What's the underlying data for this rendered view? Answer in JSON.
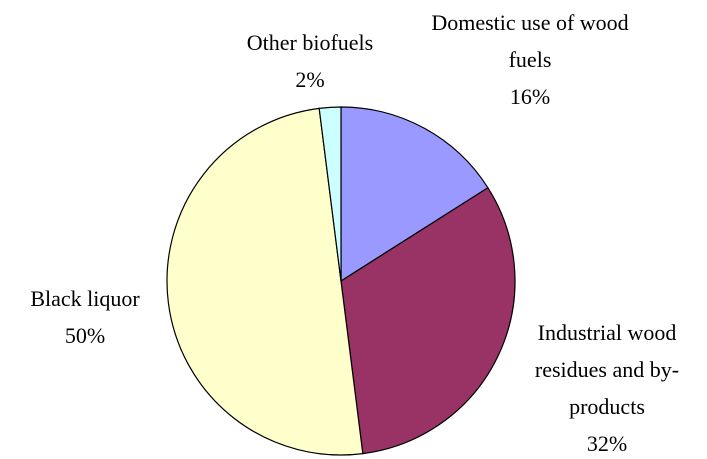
{
  "chart_data": {
    "type": "pie",
    "categories": [
      "Domestic use of wood fuels",
      "Industrial wood residues and by-products",
      "Black liquor",
      "Other biofuels"
    ],
    "values": [
      16,
      32,
      50,
      2
    ],
    "value_labels": [
      "16%",
      "32%",
      "50%",
      "2%"
    ],
    "colors": [
      "#9999ff",
      "#993366",
      "#ffffcc",
      "#ccffff"
    ]
  }
}
